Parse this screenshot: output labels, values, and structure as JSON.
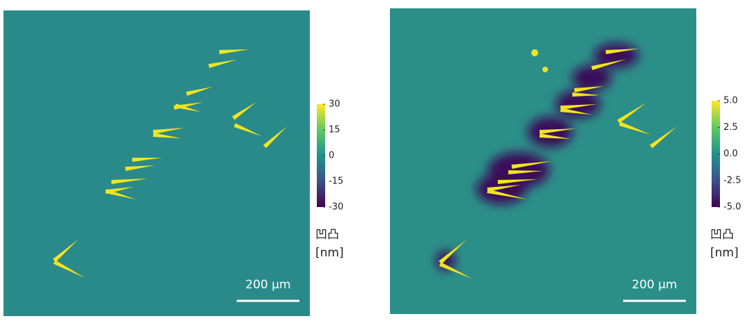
{
  "panels": [
    {
      "colorbar": {
        "lim": [
          -30,
          30
        ],
        "ticks": [
          30,
          15,
          0,
          -15,
          -30
        ],
        "label": "凹凸",
        "unit": "[nm]"
      },
      "scale_bar": "200 µm"
    },
    {
      "colorbar": {
        "lim": [
          -5,
          5
        ],
        "ticks": [
          {
            "value": 5,
            "label": "5.0"
          },
          {
            "value": 2.5,
            "label": "2.5"
          },
          {
            "value": 0,
            "label": "0.0"
          },
          {
            "value": -2.5,
            "label": "-2.5"
          },
          {
            "value": -5,
            "label": "-5.0"
          }
        ],
        "label": "凹凸",
        "unit": "[nm]"
      },
      "scale_bar": "200 µm"
    }
  ]
}
